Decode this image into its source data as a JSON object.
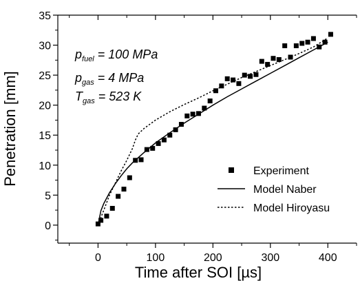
{
  "chart_data": {
    "type": "scatter",
    "title": "",
    "xlabel": "Time after SOI [µs]",
    "ylabel": "Penetration [mm]",
    "xlim": [
      -70,
      450
    ],
    "ylim": [
      -3,
      35
    ],
    "x_ticks": [
      0,
      100,
      200,
      300,
      400
    ],
    "y_ticks": [
      0,
      5,
      10,
      15,
      20,
      25,
      30,
      35
    ],
    "grid": false,
    "legend_position": "bottom-right",
    "annotations": [
      {
        "var": "p",
        "sub": "fuel",
        "rest": " = 100 MPa"
      },
      {
        "var": "p",
        "sub": "gas",
        "rest": " = 4 MPa"
      },
      {
        "var": "T",
        "sub": "gas",
        "rest": " = 523 K"
      }
    ],
    "series": [
      {
        "name": "Experiment",
        "kind": "scatter",
        "marker": "square",
        "x": [
          0,
          5,
          15,
          25,
          35,
          45,
          55,
          65,
          75,
          85,
          95,
          105,
          115,
          125,
          135,
          145,
          155,
          165,
          175,
          185,
          195,
          205,
          215,
          225,
          235,
          245,
          255,
          265,
          275,
          285,
          295,
          305,
          315,
          325,
          335,
          345,
          355,
          365,
          375,
          385,
          395,
          405
        ],
        "y": [
          0.2,
          0.8,
          1.5,
          2.8,
          4.8,
          6.0,
          7.9,
          10.8,
          10.9,
          12.6,
          12.8,
          13.6,
          14.2,
          15.0,
          15.9,
          16.8,
          18.2,
          18.5,
          18.6,
          19.5,
          20.7,
          22.4,
          23.2,
          24.4,
          24.2,
          23.6,
          25.0,
          24.8,
          25.1,
          27.3,
          26.8,
          27.8,
          27.6,
          29.9,
          28.0,
          29.9,
          30.3,
          30.5,
          31.1,
          29.7,
          30.5,
          31.8
        ]
      },
      {
        "name": "Model Naber",
        "kind": "line",
        "style": "solid",
        "x": [
          0,
          5,
          10,
          20,
          30,
          40,
          50,
          60,
          80,
          100,
          125,
          150,
          175,
          200,
          225,
          250,
          275,
          300,
          325,
          350,
          375,
          400
        ],
        "y": [
          0,
          2.4,
          3.6,
          5.4,
          6.9,
          8.2,
          9.4,
          10.4,
          12.1,
          13.7,
          15.4,
          17.0,
          18.5,
          20.0,
          21.4,
          22.7,
          24.0,
          25.3,
          26.6,
          27.9,
          29.2,
          30.5
        ]
      },
      {
        "name": "Model Hiroyasu",
        "kind": "line",
        "style": "dotted",
        "x": [
          0,
          10,
          20,
          30,
          40,
          50,
          60,
          65,
          70,
          80,
          100,
          125,
          150,
          175,
          200,
          225,
          250,
          275,
          300,
          325,
          350,
          375,
          400
        ],
        "y": [
          0,
          2.5,
          5.0,
          7.0,
          9.0,
          10.8,
          12.8,
          14.2,
          15.2,
          16.1,
          17.5,
          18.9,
          20.1,
          21.2,
          22.4,
          23.5,
          24.6,
          25.6,
          26.6,
          27.6,
          28.6,
          29.7,
          31.2
        ]
      }
    ]
  }
}
